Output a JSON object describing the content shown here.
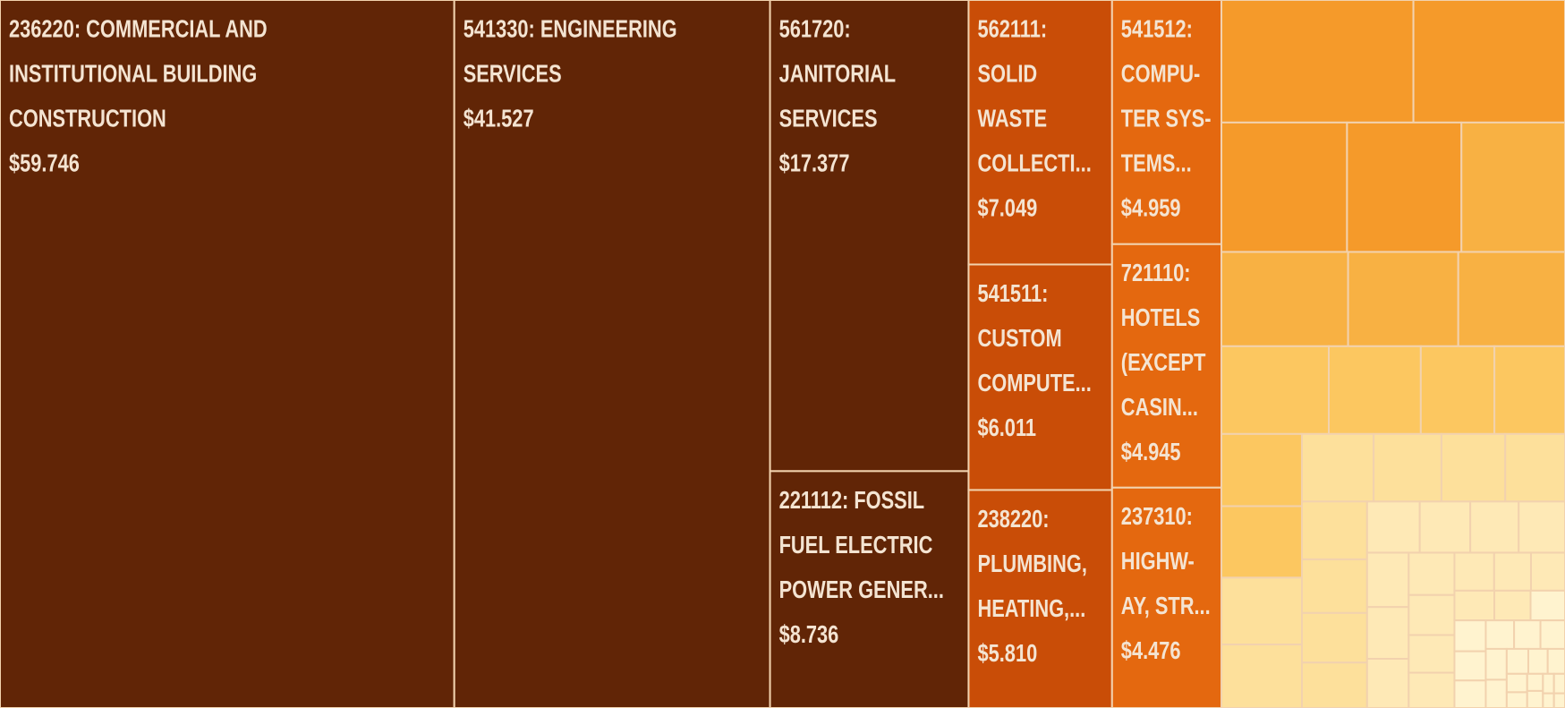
{
  "chart_data": {
    "type": "treemap",
    "categories": [
      [
        "236220: COMMERCIAL AND",
        "INSTITUTIONAL BUILDING",
        "CONSTRUCTION"
      ],
      [
        "541330: ENGINEERING",
        "SERVICES"
      ],
      [
        "561720:",
        "JANITORIAL",
        "SERVICES"
      ],
      [
        "221112: FOSSIL",
        "FUEL ELECTRIC",
        "POWER GENER..."
      ],
      [
        "562111:",
        "SOLID",
        "WASTE",
        "COLLECTI..."
      ],
      [
        "541511:",
        "CUSTOM",
        "COMPUTE..."
      ],
      [
        "238220:",
        "PLUMBING,",
        "HEATING,..."
      ],
      [
        "541512:",
        "COMPU-",
        "TER SYS-",
        "TEMS..."
      ],
      [
        "721110:",
        "HOTELS",
        "(EXCEPT",
        "CASIN..."
      ],
      [
        "237310:",
        "HIGHW-",
        "AY, STR..."
      ],
      null,
      null,
      null,
      null,
      null,
      null,
      null,
      null,
      null,
      null,
      null,
      null,
      null,
      null,
      null,
      null,
      null,
      null,
      null,
      null,
      null,
      null,
      null,
      null,
      null,
      null,
      null,
      null,
      null,
      null,
      null,
      null,
      null,
      null,
      null,
      null,
      null,
      null,
      null,
      null,
      null,
      null,
      null,
      null,
      null,
      null,
      null,
      null,
      null,
      null,
      null,
      null,
      null,
      null,
      null,
      null,
      null,
      null,
      null,
      null
    ],
    "values": [
      59.746,
      41.527,
      17.377,
      8.736,
      7.049,
      6.011,
      5.81,
      4.959,
      4.945,
      4.476,
      4.37,
      3.45,
      3.02,
      2.75,
      2.49,
      2.22,
      1.93,
      1.87,
      1.75,
      1.5,
      1.2,
      1.15,
      1.08,
      1.07,
      1.0,
      0.95,
      0.9,
      0.85,
      0.8,
      0.75,
      0.7,
      0.65,
      0.6,
      0.55,
      0.5,
      0.48,
      0.46,
      0.44,
      0.42,
      0.4,
      0.38,
      0.36,
      0.34,
      0.32,
      0.3,
      0.28,
      0.26,
      0.24,
      0.22,
      0.2,
      0.19,
      0.18,
      0.17,
      0.16,
      0.15,
      0.14,
      0.13,
      0.12,
      0.11,
      0.1,
      0.09,
      0.08,
      0.07,
      0.06,
      0.05,
      0.05,
      0.04,
      0.04,
      0.03,
      0.03
    ],
    "value_labels": [
      "$59.746",
      "$41.527",
      "$17.377",
      "$8.736",
      "$7.049",
      "$6.011",
      "$5.810",
      "$4.959",
      "$4.945",
      "$4.476",
      null,
      null,
      null,
      null,
      null,
      null,
      null,
      null,
      null,
      null,
      null,
      null,
      null,
      null,
      null,
      null,
      null,
      null,
      null,
      null,
      null,
      null,
      null,
      null,
      null,
      null,
      null,
      null,
      null,
      null,
      null,
      null,
      null,
      null,
      null,
      null,
      null,
      null,
      null,
      null,
      null,
      null,
      null,
      null,
      null,
      null,
      null,
      null,
      null,
      null,
      null,
      null,
      null,
      null,
      null,
      null,
      null,
      null,
      null,
      null
    ],
    "colors": [
      "#612506",
      "#612506",
      "#612506",
      "#612506",
      "#c94d07",
      "#c94d07",
      "#c94d07",
      "#e4680f",
      "#e4680f",
      "#e4680f",
      "#f59a2a",
      "#f59a2a",
      "#f59a2a",
      "#f59a2a",
      "#f8b143",
      "#f8b143",
      "#f8b143",
      "#f8b143",
      "#fcc760",
      "#fcc760",
      "#fcc760",
      "#fcc760",
      "#fcc760",
      "#fcc760",
      "#fde09b",
      "#fde09b",
      "#fde09b",
      "#fde09b",
      "#fde09b",
      "#fde09b",
      "#fde09b",
      "#fde09b",
      "#fde09b",
      "#fde09b",
      "#fee9b6",
      "#fee9b6",
      "#fee9b6",
      "#fee9b6",
      "#fee9b6",
      "#fee9b6",
      "#fee9b6",
      "#fee9b6",
      "#fee9b6",
      "#fee9b6",
      "#fee9b6",
      "#fee9b6",
      "#fee9b6",
      "#fee9b6",
      "#fee9b6",
      "#fee9b6",
      "#fff3cf",
      "#fff3cf",
      "#fff3cf",
      "#fff3cf",
      "#fff3cf",
      "#fff3cf",
      "#fff3cf",
      "#fff3cf",
      "#fff3cf",
      "#fff3cf",
      "#fff3cf",
      "#fff3cf",
      "#fff3cf",
      "#fff3cf",
      "#fff3cf",
      "#fff3cf",
      "#fff3cf",
      "#fff3cf",
      "#fff3cf",
      "#fff3cf"
    ]
  }
}
